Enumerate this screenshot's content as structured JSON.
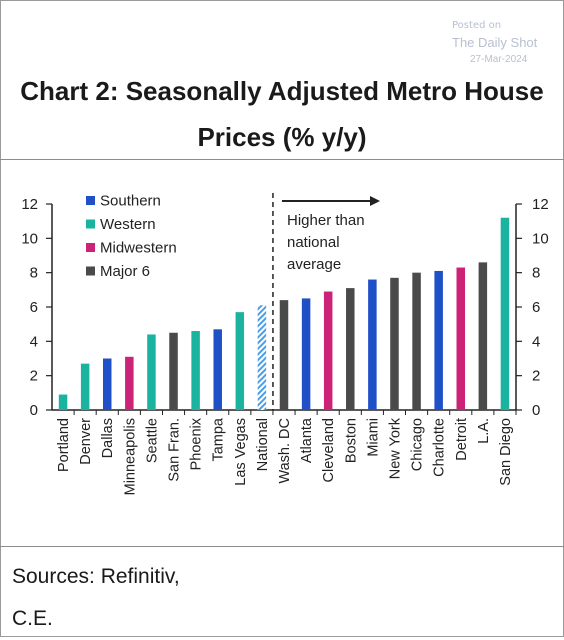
{
  "watermark": {
    "posted": "Posted on",
    "source": "The Daily Shot",
    "date": "27-Mar-2024"
  },
  "title_line1": "Chart 2: Seasonally Adjusted Metro House",
  "title_line2": "Prices (% y/y)",
  "sources_line1": "Sources: Refinitiv,",
  "sources_line2": "C.E.",
  "colors": {
    "Southern": "#2050c8",
    "Western": "#1ab3a0",
    "Midwestern": "#cc2277",
    "Major 6": "#4a4a4a",
    "National": "#4a9ee8"
  },
  "chart_data": {
    "type": "bar",
    "title": "Chart 2: Seasonally Adjusted Metro House Prices (% y/y)",
    "categories": [
      "Portland",
      "Denver",
      "Dallas",
      "Minneapolis",
      "Seattle",
      "San Fran.",
      "Phoenix",
      "Tampa",
      "Las Vegas",
      "National",
      "Wash. DC",
      "Atlanta",
      "Cleveland",
      "Boston",
      "Miami",
      "New York",
      "Chicago",
      "Charlotte",
      "Detroit",
      "L.A.",
      "San Diego"
    ],
    "values": [
      0.9,
      2.7,
      3.0,
      3.1,
      4.4,
      4.5,
      4.6,
      4.7,
      5.7,
      6.1,
      6.4,
      6.5,
      6.9,
      7.1,
      7.6,
      7.7,
      8.0,
      8.1,
      8.3,
      8.6,
      11.2
    ],
    "groups": [
      "Western",
      "Western",
      "Southern",
      "Midwestern",
      "Western",
      "Major 6",
      "Western",
      "Southern",
      "Western",
      "National",
      "Major 6",
      "Southern",
      "Midwestern",
      "Major 6",
      "Southern",
      "Major 6",
      "Major 6",
      "Southern",
      "Midwestern",
      "Major 6",
      "Western"
    ],
    "legend": [
      "Southern",
      "Western",
      "Midwestern",
      "Major 6"
    ],
    "legend_position": "top-left",
    "ylim": [
      0,
      12
    ],
    "yticks": [
      0,
      2,
      4,
      6,
      8,
      10,
      12
    ],
    "secondary_y_axis": true,
    "annotation": [
      "Higher than",
      "national",
      "average"
    ],
    "xlabel": "",
    "ylabel": ""
  }
}
